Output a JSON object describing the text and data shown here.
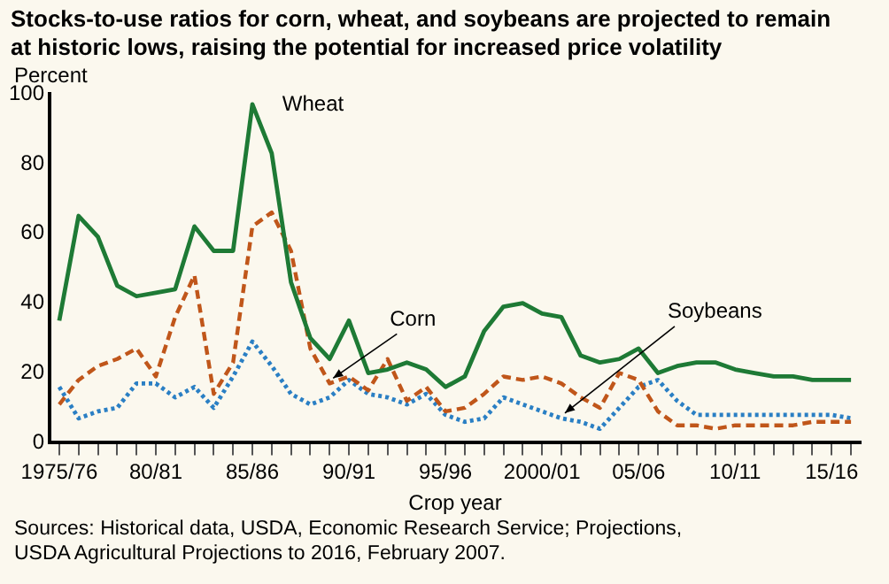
{
  "chart_data": {
    "type": "line",
    "title": "Stocks-to-use ratios for corn, wheat, and soybeans are projected to remain at historic lows, raising the potential for increased price volatility",
    "xlabel": "Crop year",
    "ylabel": "Percent",
    "categories": [
      "1975/76",
      null,
      null,
      null,
      null,
      "80/81",
      null,
      null,
      null,
      null,
      "85/86",
      null,
      null,
      null,
      null,
      "90/91",
      null,
      null,
      null,
      null,
      "95/96",
      null,
      null,
      null,
      null,
      "2000/01",
      null,
      null,
      null,
      null,
      "05/06",
      null,
      null,
      null,
      null,
      "10/11",
      null,
      null,
      null,
      null,
      "15/16",
      null
    ],
    "series": [
      {
        "name": "Wheat",
        "color": "#1e7a35",
        "line_style": "solid",
        "values": [
          35,
          65,
          59,
          45,
          42,
          43,
          44,
          62,
          55,
          55,
          97,
          83,
          46,
          30,
          24,
          35,
          20,
          21,
          23,
          21,
          16,
          19,
          32,
          39,
          40,
          37,
          36,
          25,
          23,
          24,
          27,
          20,
          22,
          23,
          23,
          21,
          20,
          19,
          19,
          18,
          18,
          18
        ]
      },
      {
        "name": "Corn",
        "color": "#c0561a",
        "line_style": "dashed",
        "values": [
          11,
          18,
          22,
          24,
          27,
          19,
          36,
          48,
          14,
          23,
          62,
          66,
          55,
          27,
          17,
          19,
          15,
          24,
          12,
          16,
          9,
          10,
          14,
          19,
          18,
          19,
          17,
          13,
          10,
          20,
          18,
          9,
          5,
          5,
          4,
          5,
          5,
          5,
          5,
          6,
          6,
          6
        ]
      },
      {
        "name": "Soybeans",
        "color": "#2a7fc4",
        "line_style": "dotted",
        "values": [
          16,
          7,
          9,
          10,
          17,
          17,
          13,
          16,
          10,
          19,
          29,
          22,
          14,
          11,
          13,
          18,
          14,
          13,
          11,
          14,
          8,
          6,
          7,
          13,
          11,
          9,
          7,
          6,
          4,
          10,
          16,
          18,
          12,
          8,
          8,
          8,
          8,
          8,
          8,
          8,
          8,
          7
        ]
      }
    ],
    "ylim": [
      0,
      100
    ],
    "yticks": [
      0,
      20,
      40,
      60,
      80,
      100
    ],
    "grid": false,
    "legend": false,
    "marker": "none",
    "annotations": [
      "Sources: Historical data, USDA, Economic Research Service; Projections, USDA Agricultural Projections to 2016, February 2007."
    ]
  }
}
